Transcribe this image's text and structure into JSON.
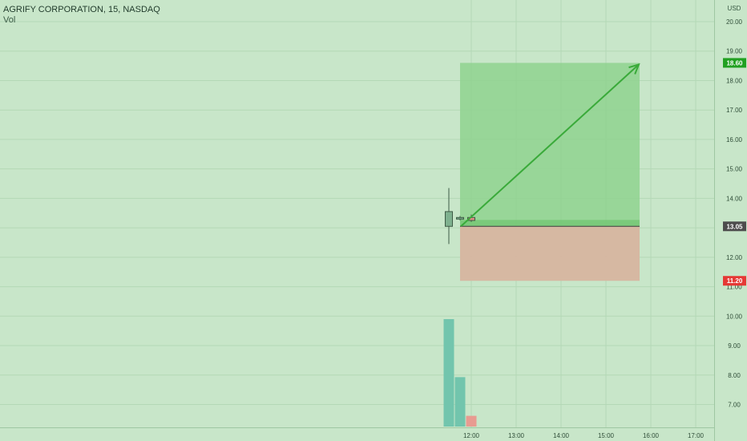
{
  "legend": {
    "symbol": "AGRIFY CORPORATION, 15, NASDAQ",
    "volume": "Vol"
  },
  "chart_data": {
    "type": "candlestick",
    "currency": "USD",
    "y_ticks": [
      "20.00",
      "19.00",
      "18.00",
      "17.00",
      "16.00",
      "15.00",
      "14.00",
      "13.00",
      "12.00",
      "11.00",
      "10.00",
      "9.00",
      "8.00",
      "7.00"
    ],
    "x_ticks": [
      "12:00",
      "13:00",
      "14:00",
      "15:00",
      "16:00",
      "17:00"
    ],
    "y_range": [
      6.3,
      20.7
    ],
    "x_range": [
      "09:30",
      "17:45"
    ],
    "candles": [
      {
        "time": "11:30",
        "open": 13.05,
        "high": 14.35,
        "low": 12.45,
        "close": 13.55
      },
      {
        "time": "11:45",
        "open": 13.3,
        "high": 13.4,
        "low": 13.25,
        "close": 13.35
      },
      {
        "time": "12:00",
        "open": 13.35,
        "high": 13.45,
        "low": 13.2,
        "close": 13.25
      }
    ],
    "volume": [
      {
        "time": "11:30",
        "value": 100
      },
      {
        "time": "11:45",
        "value": 46
      },
      {
        "time": "12:00",
        "value": 10
      }
    ],
    "position": {
      "type": "long",
      "start": "11:45",
      "end": "15:45",
      "entry": 13.05,
      "target": 18.6,
      "stop": 11.2,
      "entry_label": "13.05",
      "target_label": "18.60",
      "stop_label": "11.20"
    },
    "colors": {
      "background": "#c8e6c9",
      "up_candle": "#7fb18f",
      "down_candle": "#e08c86",
      "volume_up": "#72c5ad",
      "volume_down": "#e89b91",
      "profit_zone": "#8fd28f",
      "loss_zone": "#d7b5a0",
      "arrow": "#3aaa3a",
      "target_badge": "#22a022",
      "stop_badge": "#e53935",
      "entry_badge": "#4d4d4d"
    }
  }
}
